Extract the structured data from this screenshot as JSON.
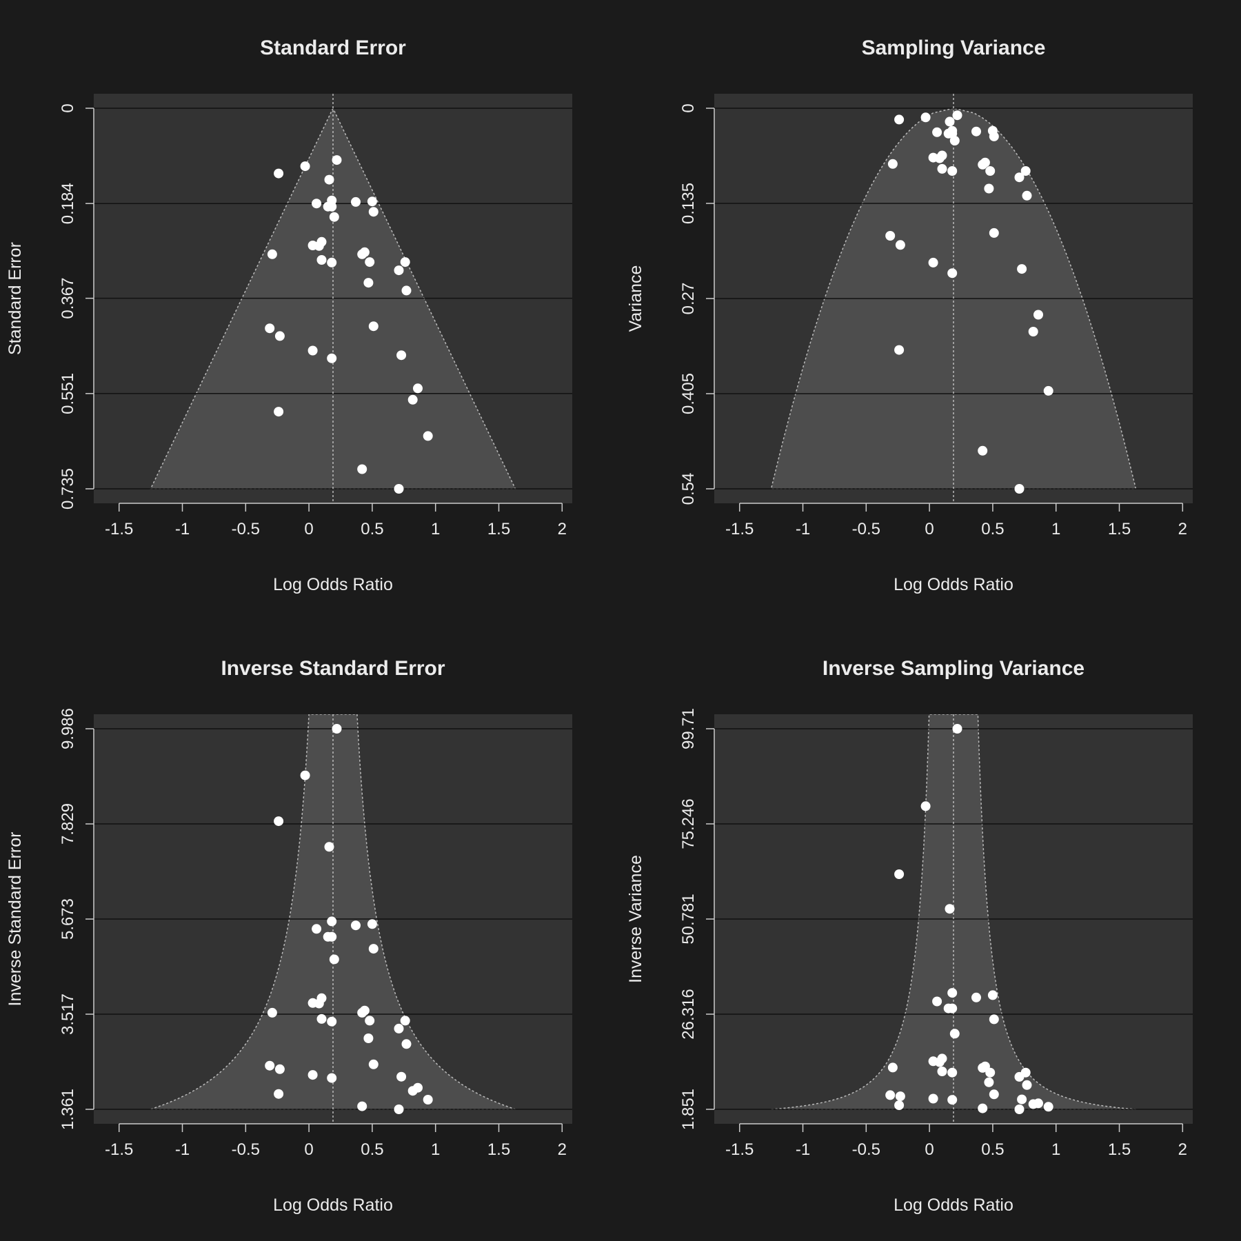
{
  "colors": {
    "background": "#1b1b1b",
    "plot_background": "#333333",
    "funnel_fill": "#4d4d4d",
    "gridline": "#111111",
    "reference_line": "#bbbbbb",
    "axis": "#cccccc",
    "text": "#ececec",
    "points": "#ffffff"
  },
  "chart_data": [
    {
      "type": "scatter",
      "title": "Standard Error",
      "xlabel": "Log Odds Ratio",
      "ylabel": "Standard Error",
      "xlim": [
        -1.5,
        2
      ],
      "xticks": [
        "-1.5",
        "-1",
        "-0.5",
        "0",
        "0.5",
        "1",
        "1.5",
        "2"
      ],
      "yticks": [
        "0",
        "0.184",
        "0.367",
        "0.551",
        "0.735"
      ],
      "ylim": [
        0,
        0.735
      ],
      "y_reversed": true,
      "grid": true,
      "reference_x": 0.19,
      "funnel": "triangle",
      "points": [
        [
          0.22,
          0.1
        ],
        [
          -0.03,
          0.112
        ],
        [
          -0.24,
          0.126
        ],
        [
          0.16,
          0.138
        ],
        [
          0.06,
          0.184
        ],
        [
          0.18,
          0.178
        ],
        [
          0.15,
          0.19
        ],
        [
          0.18,
          0.19
        ],
        [
          0.37,
          0.181
        ],
        [
          0.5,
          0.18
        ],
        [
          0.51,
          0.2
        ],
        [
          0.2,
          0.21
        ],
        [
          0.1,
          0.258
        ],
        [
          0.08,
          0.266
        ],
        [
          0.03,
          0.265
        ],
        [
          -0.29,
          0.282
        ],
        [
          0.42,
          0.282
        ],
        [
          0.44,
          0.278
        ],
        [
          0.1,
          0.293
        ],
        [
          0.18,
          0.298
        ],
        [
          0.48,
          0.297
        ],
        [
          0.76,
          0.297
        ],
        [
          0.71,
          0.313
        ],
        [
          0.47,
          0.337
        ],
        [
          0.77,
          0.352
        ],
        [
          -0.31,
          0.425
        ],
        [
          0.51,
          0.421
        ],
        [
          -0.23,
          0.44
        ],
        [
          0.03,
          0.468
        ],
        [
          0.18,
          0.483
        ],
        [
          0.73,
          0.477
        ],
        [
          0.86,
          0.541
        ],
        [
          0.82,
          0.563
        ],
        [
          -0.24,
          0.586
        ],
        [
          0.94,
          0.633
        ],
        [
          0.42,
          0.697
        ],
        [
          0.71,
          0.735
        ]
      ]
    },
    {
      "type": "scatter",
      "title": "Sampling Variance",
      "xlabel": "Log Odds Ratio",
      "ylabel": "Variance",
      "xlim": [
        -1.5,
        2
      ],
      "xticks": [
        "-1.5",
        "-1",
        "-0.5",
        "0",
        "0.5",
        "1",
        "1.5",
        "2"
      ],
      "yticks": [
        "0",
        "0.135",
        "0.27",
        "0.405",
        "0.54"
      ],
      "ylim": [
        0,
        0.54
      ],
      "y_reversed": true,
      "grid": true,
      "reference_x": 0.19,
      "funnel": "parabola",
      "points": [
        [
          0.22,
          0.01
        ],
        [
          -0.03,
          0.013
        ],
        [
          -0.24,
          0.016
        ],
        [
          0.16,
          0.019
        ],
        [
          0.06,
          0.034
        ],
        [
          0.18,
          0.032
        ],
        [
          0.15,
          0.036
        ],
        [
          0.18,
          0.036
        ],
        [
          0.37,
          0.033
        ],
        [
          0.5,
          0.032
        ],
        [
          0.51,
          0.04
        ],
        [
          0.2,
          0.046
        ],
        [
          0.1,
          0.067
        ],
        [
          0.08,
          0.071
        ],
        [
          0.03,
          0.07
        ],
        [
          -0.29,
          0.079
        ],
        [
          0.42,
          0.08
        ],
        [
          0.44,
          0.077
        ],
        [
          0.1,
          0.086
        ],
        [
          0.18,
          0.089
        ],
        [
          0.48,
          0.089
        ],
        [
          0.76,
          0.089
        ],
        [
          0.71,
          0.098
        ],
        [
          0.47,
          0.114
        ],
        [
          0.77,
          0.124
        ],
        [
          -0.31,
          0.181
        ],
        [
          0.51,
          0.177
        ],
        [
          -0.23,
          0.194
        ],
        [
          0.03,
          0.219
        ],
        [
          0.18,
          0.234
        ],
        [
          0.73,
          0.228
        ],
        [
          0.86,
          0.293
        ],
        [
          0.82,
          0.317
        ],
        [
          -0.24,
          0.343
        ],
        [
          0.94,
          0.401
        ],
        [
          0.42,
          0.486
        ],
        [
          0.71,
          0.54
        ]
      ]
    },
    {
      "type": "scatter",
      "title": "Inverse Standard Error",
      "xlabel": "Log Odds Ratio",
      "ylabel": "Inverse Standard Error",
      "xlim": [
        -1.5,
        2
      ],
      "xticks": [
        "-1.5",
        "-1",
        "-0.5",
        "0",
        "0.5",
        "1",
        "1.5",
        "2"
      ],
      "yticks": [
        "1.361",
        "3.517",
        "5.673",
        "7.829",
        "9.986"
      ],
      "ylim": [
        1.361,
        9.986
      ],
      "y_reversed": false,
      "grid": true,
      "reference_x": 0.19,
      "funnel": "inverse",
      "points": [
        [
          0.22,
          9.986
        ],
        [
          -0.03,
          8.93
        ],
        [
          -0.24,
          7.89
        ],
        [
          0.16,
          7.31
        ],
        [
          0.06,
          5.45
        ],
        [
          0.18,
          5.62
        ],
        [
          0.15,
          5.27
        ],
        [
          0.18,
          5.27
        ],
        [
          0.37,
          5.53
        ],
        [
          0.5,
          5.56
        ],
        [
          0.51,
          5.0
        ],
        [
          0.2,
          4.76
        ],
        [
          0.1,
          3.88
        ],
        [
          0.08,
          3.76
        ],
        [
          0.03,
          3.77
        ],
        [
          -0.29,
          3.55
        ],
        [
          0.42,
          3.55
        ],
        [
          0.44,
          3.6
        ],
        [
          0.1,
          3.41
        ],
        [
          0.18,
          3.35
        ],
        [
          0.48,
          3.37
        ],
        [
          0.76,
          3.37
        ],
        [
          0.71,
          3.19
        ],
        [
          0.47,
          2.97
        ],
        [
          0.77,
          2.84
        ],
        [
          -0.31,
          2.35
        ],
        [
          0.51,
          2.38
        ],
        [
          -0.23,
          2.27
        ],
        [
          0.03,
          2.14
        ],
        [
          0.18,
          2.07
        ],
        [
          0.73,
          2.1
        ],
        [
          0.86,
          1.85
        ],
        [
          0.82,
          1.78
        ],
        [
          -0.24,
          1.71
        ],
        [
          0.94,
          1.58
        ],
        [
          0.42,
          1.43
        ],
        [
          0.71,
          1.361
        ]
      ]
    },
    {
      "type": "scatter",
      "title": "Inverse Sampling Variance",
      "xlabel": "Log Odds Ratio",
      "ylabel": "Inverse Variance",
      "xlim": [
        -1.5,
        2
      ],
      "xticks": [
        "-1.5",
        "-1",
        "-0.5",
        "0",
        "0.5",
        "1",
        "1.5",
        "2"
      ],
      "yticks": [
        "1.851",
        "26.316",
        "50.781",
        "75.246",
        "99.71"
      ],
      "ylim": [
        1.851,
        99.71
      ],
      "y_reversed": false,
      "grid": true,
      "reference_x": 0.19,
      "funnel": "inverse-variance",
      "points": [
        [
          0.22,
          99.71
        ],
        [
          -0.03,
          79.8
        ],
        [
          -0.24,
          62.3
        ],
        [
          0.16,
          53.4
        ],
        [
          0.06,
          29.6
        ],
        [
          0.18,
          31.8
        ],
        [
          0.15,
          27.8
        ],
        [
          0.18,
          27.8
        ],
        [
          0.37,
          30.6
        ],
        [
          0.5,
          31.2
        ],
        [
          0.51,
          25.0
        ],
        [
          0.2,
          21.3
        ],
        [
          0.1,
          14.9
        ],
        [
          0.08,
          14.0
        ],
        [
          0.03,
          14.2
        ],
        [
          -0.29,
          12.6
        ],
        [
          0.42,
          12.5
        ],
        [
          0.44,
          12.9
        ],
        [
          0.1,
          11.6
        ],
        [
          0.18,
          11.3
        ],
        [
          0.48,
          11.3
        ],
        [
          0.76,
          11.3
        ],
        [
          0.71,
          10.2
        ],
        [
          0.47,
          8.8
        ],
        [
          0.77,
          8.1
        ],
        [
          -0.31,
          5.5
        ],
        [
          0.51,
          5.7
        ],
        [
          -0.23,
          5.2
        ],
        [
          0.03,
          4.6
        ],
        [
          0.18,
          4.3
        ],
        [
          0.73,
          4.4
        ],
        [
          0.86,
          3.4
        ],
        [
          0.82,
          3.2
        ],
        [
          -0.24,
          2.9
        ],
        [
          0.94,
          2.5
        ],
        [
          0.42,
          2.1
        ],
        [
          0.71,
          1.851
        ]
      ]
    }
  ]
}
